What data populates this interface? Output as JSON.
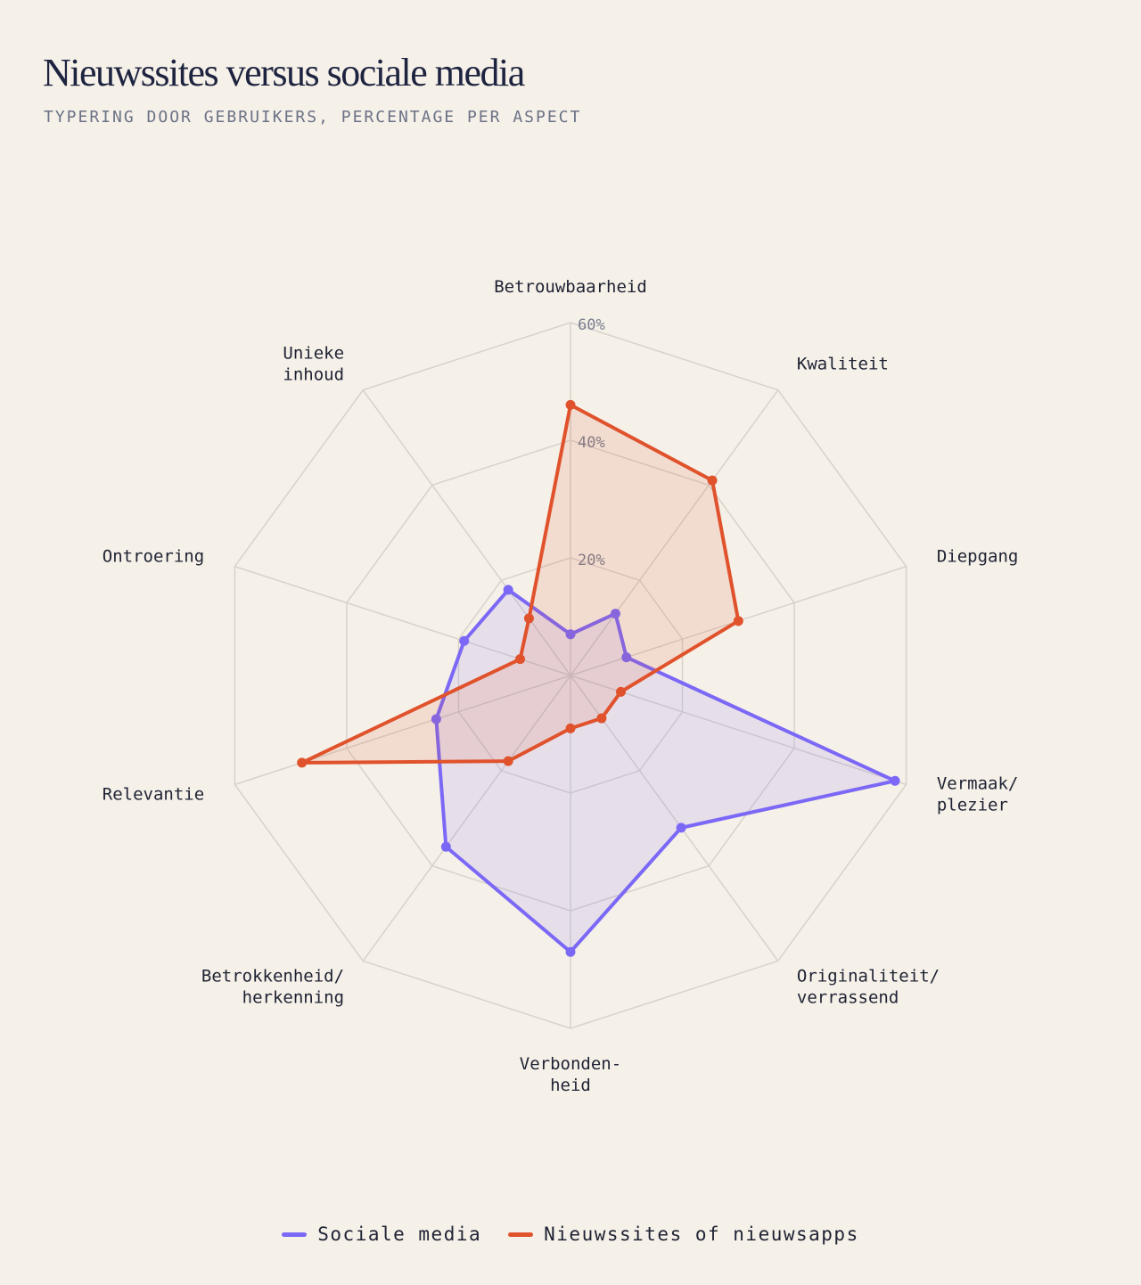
{
  "title": "Nieuwssites versus sociale media",
  "subtitle": "TYPERING DOOR GEBRUIKERS, PERCENTAGE PER ASPECT",
  "chart_data": {
    "type": "radar",
    "axes": [
      [
        "Betrouwbaarheid"
      ],
      [
        "Kwaliteit"
      ],
      [
        "Diepgang"
      ],
      [
        "Vermaak/",
        "plezier"
      ],
      [
        "Originaliteit/",
        "verrassend"
      ],
      [
        "Verbonden-",
        "heid"
      ],
      [
        "Betrokkenheid/",
        "herkenning"
      ],
      [
        "Relevantie"
      ],
      [
        "Ontroering"
      ],
      [
        "Unieke",
        "inhoud"
      ]
    ],
    "scale": {
      "min": 0,
      "max": 60,
      "ticks": [
        20,
        40,
        60
      ],
      "tick_labels": [
        "20%",
        "40%",
        "60%"
      ]
    },
    "series": [
      {
        "name": "Sociale media",
        "color": "#7b68f6",
        "values": [
          7,
          13,
          10,
          58,
          32,
          47,
          36,
          24,
          19,
          18
        ]
      },
      {
        "name": "Nieuwssites of nieuwsapps",
        "color": "#e0522c",
        "values": [
          46,
          41,
          30,
          9,
          9,
          9,
          18,
          48,
          9,
          12
        ]
      }
    ],
    "grid": true,
    "legend": "bottom"
  }
}
